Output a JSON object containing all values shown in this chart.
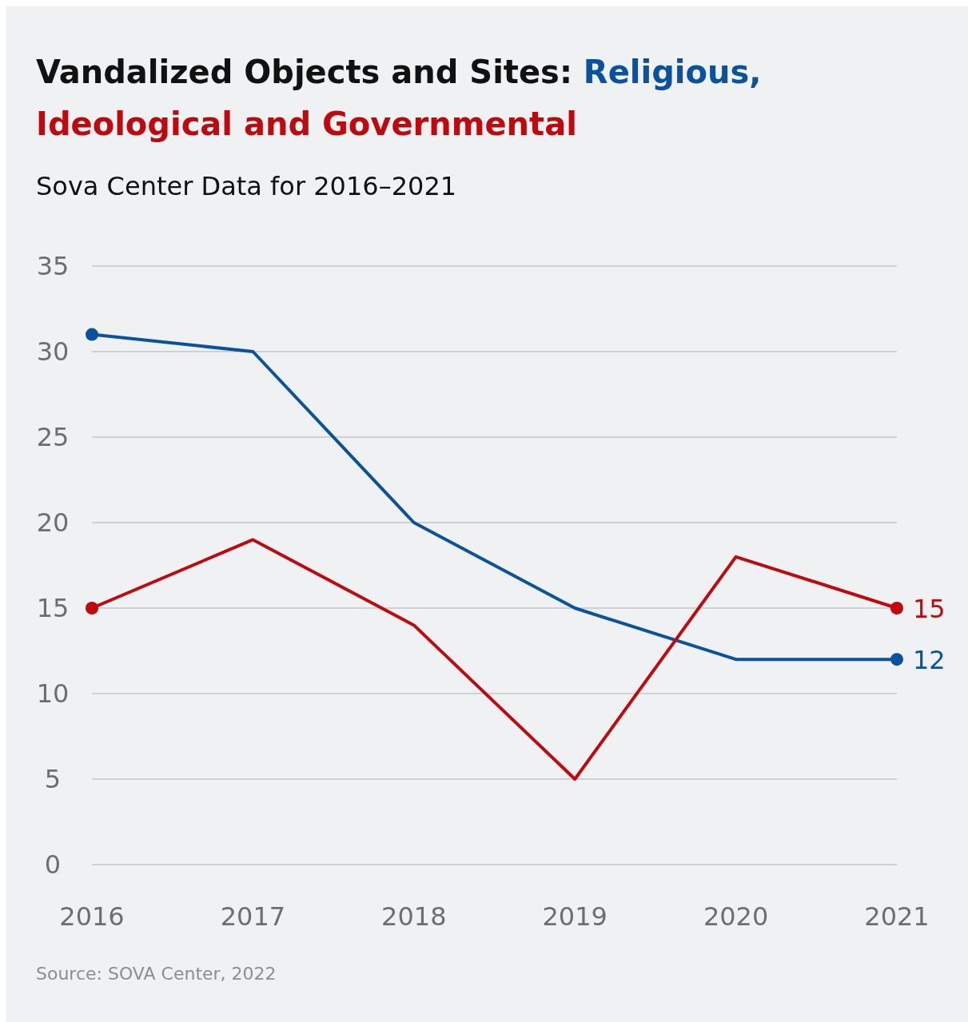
{
  "chart_data": {
    "type": "line",
    "title": "Vandalized Objects and Sites:",
    "subtitle": "Sova Center Data for 2016–2021",
    "categories": [
      "2016",
      "2017",
      "2018",
      "2019",
      "2020",
      "2021"
    ],
    "series": [
      {
        "name": "Religious,",
        "color": "#0a529e",
        "values": [
          31,
          30,
          20,
          15,
          12,
          12
        ],
        "value_labels": [
          null,
          null,
          null,
          null,
          null,
          "12"
        ]
      },
      {
        "name": "Ideological and Governmental",
        "color": "#be0a0f",
        "values": [
          15,
          19,
          14,
          5,
          18,
          15
        ],
        "value_labels": [
          null,
          null,
          null,
          null,
          null,
          "15"
        ]
      }
    ],
    "ylim": [
      0,
      35
    ],
    "yticks": [
      0,
      5,
      10,
      15,
      20,
      25,
      30,
      35
    ],
    "grid": "y",
    "line_style": "solid",
    "annotations": [
      "Source: SOVA Center, 2022"
    ]
  }
}
